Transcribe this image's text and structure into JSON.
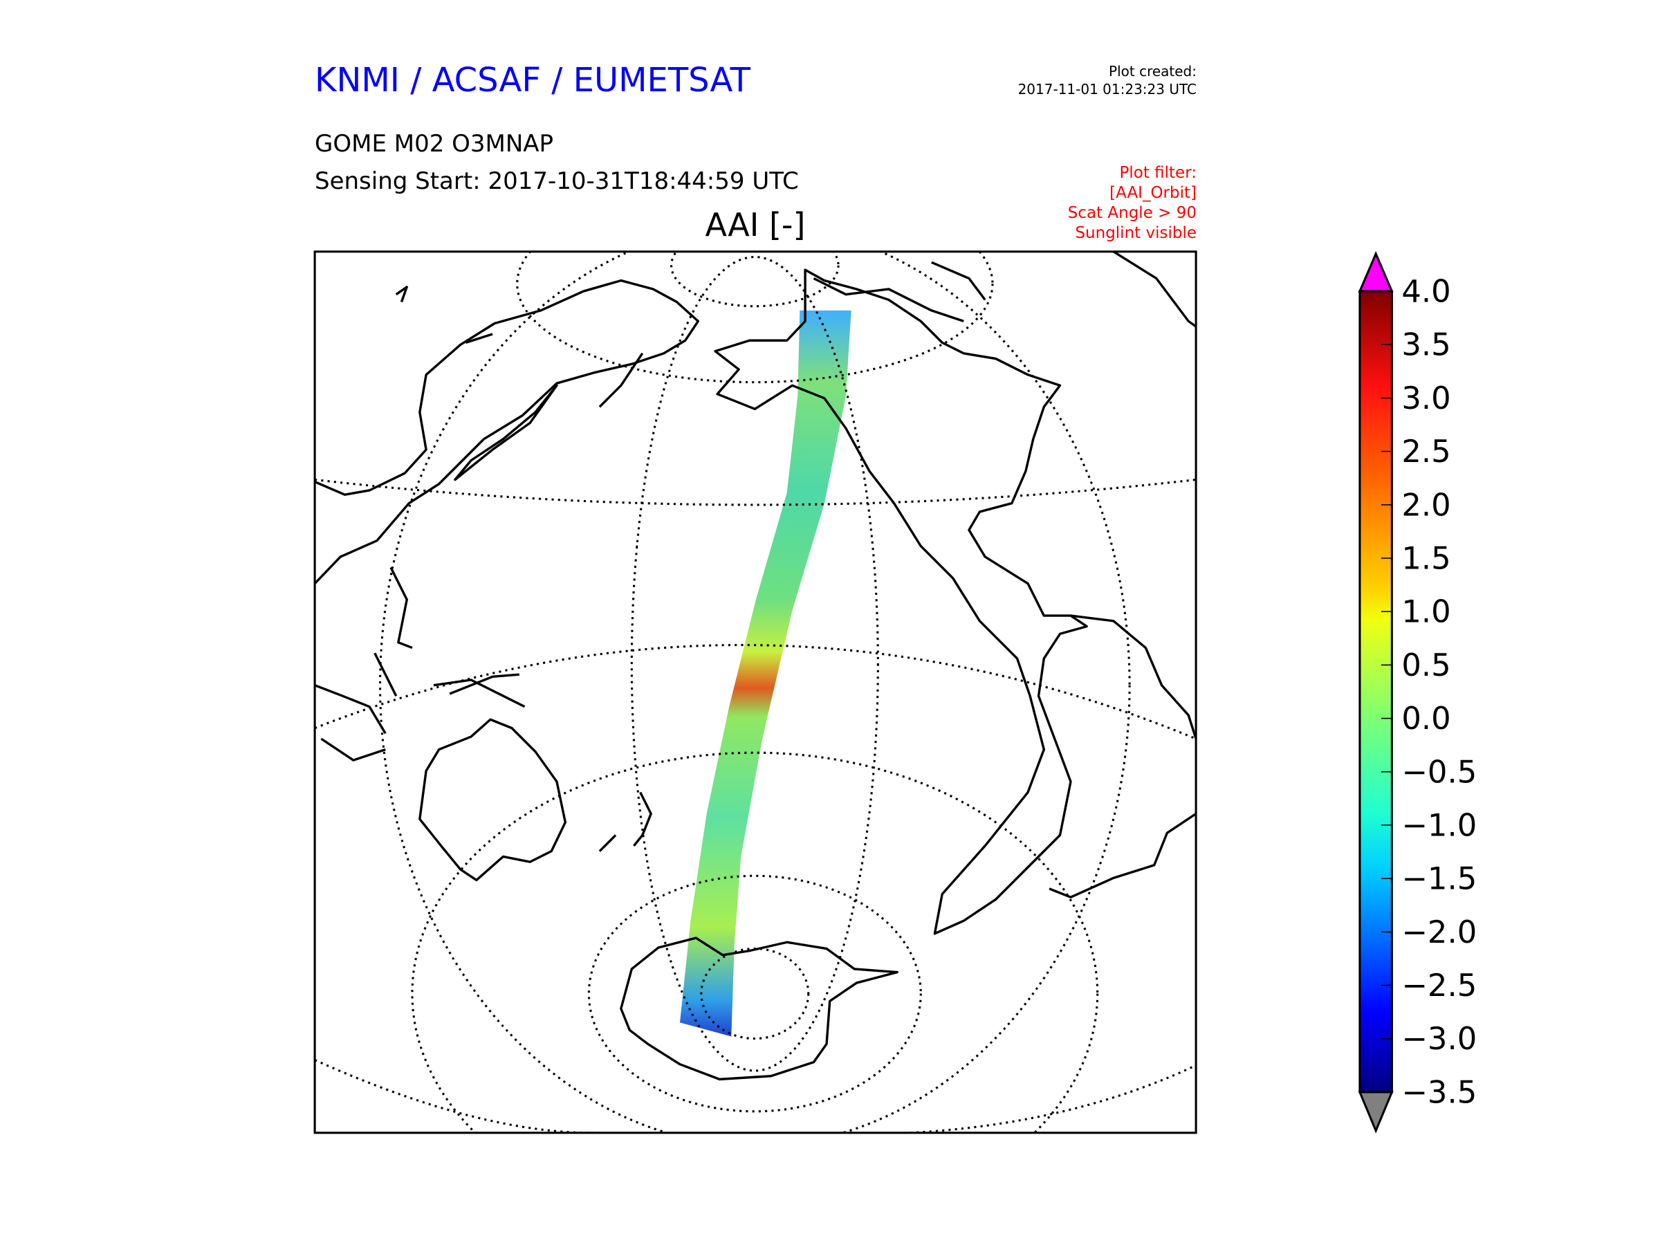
{
  "header": {
    "organization": "KNMI / ACSAF / EUMETSAT",
    "product": "GOME M02 O3MNAP",
    "sensing_start": "Sensing Start: 2017-10-31T18:44:59 UTC",
    "variable_title": "AAI [-]",
    "plot_created_label": "Plot created:",
    "plot_created_value": "2017-11-01 01:23:23 UTC"
  },
  "filter": {
    "label": "Plot filter:",
    "lines": [
      "[AAI_Orbit]",
      "Scat Angle > 90",
      "Sunglint visible"
    ]
  },
  "colorbar": {
    "min": -3.5,
    "max": 4.0,
    "over_color": "#ff00ff",
    "under_color": "#808080",
    "tick_labels": [
      "4.0",
      "3.5",
      "3.0",
      "2.5",
      "2.0",
      "1.5",
      "1.0",
      "0.5",
      "0.0",
      "−0.5",
      "−1.0",
      "−1.5",
      "−2.0",
      "−2.5",
      "−3.0",
      "−3.5"
    ],
    "tick_values": [
      4.0,
      3.5,
      3.0,
      2.5,
      2.0,
      1.5,
      1.0,
      0.5,
      0.0,
      -0.5,
      -1.0,
      -1.5,
      -2.0,
      -2.5,
      -3.0,
      -3.5
    ]
  },
  "colors": {
    "title": "#0000ff",
    "filter_text": "#ff0000"
  }
}
